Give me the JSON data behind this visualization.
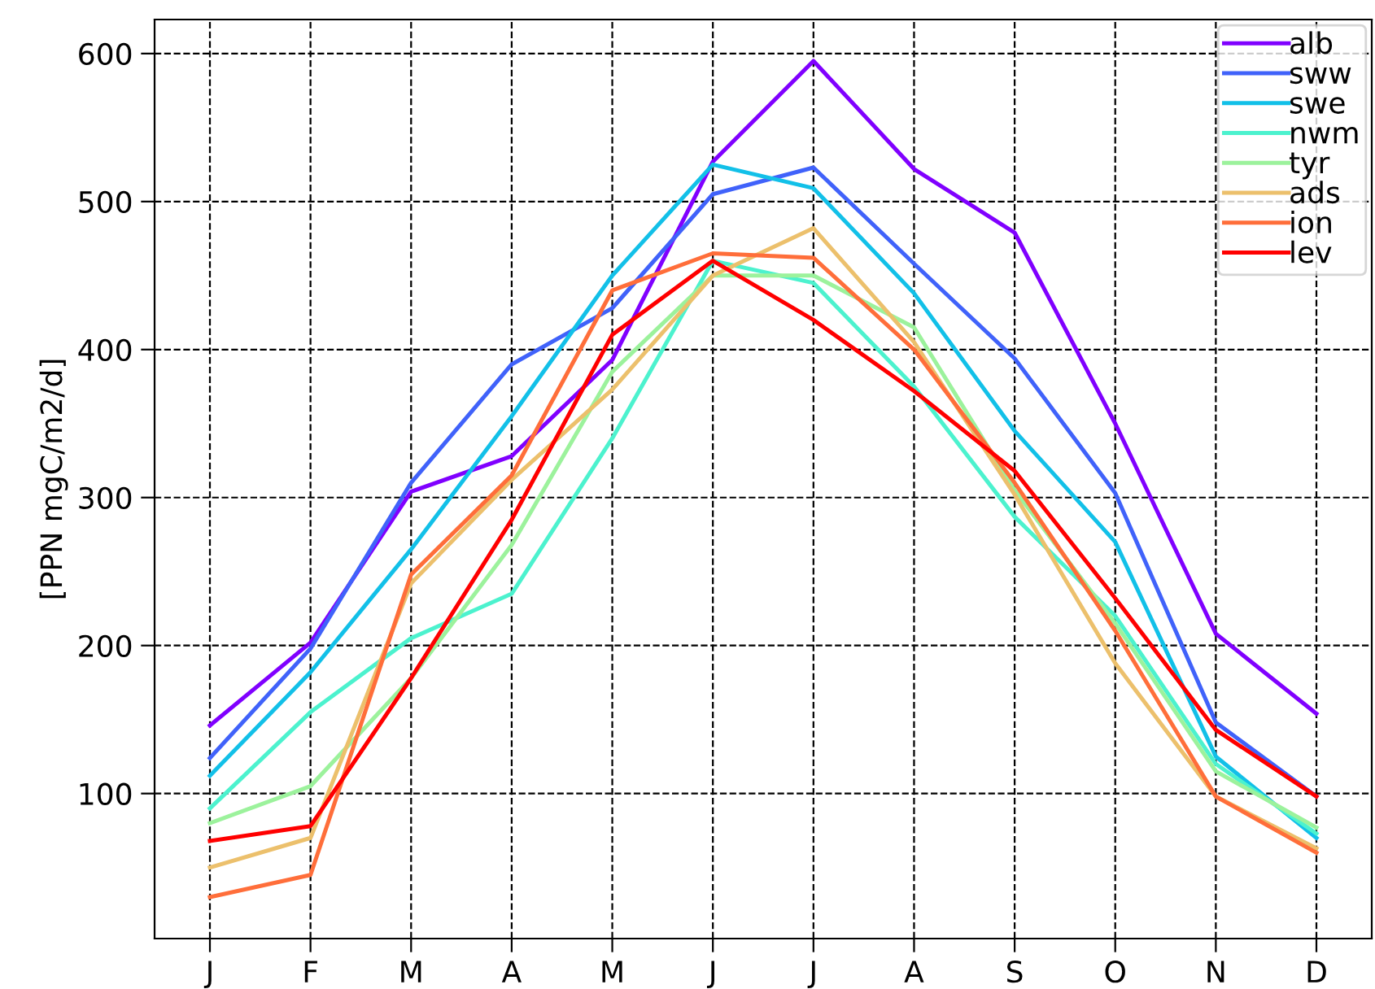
{
  "chart_data": {
    "type": "line",
    "ylabel": "[PPN mgC/m2/d]",
    "categories": [
      "J",
      "F",
      "M",
      "A",
      "M",
      "J",
      "J",
      "A",
      "S",
      "O",
      "N",
      "D"
    ],
    "ylim": [
      2,
      623
    ],
    "yticks": [
      100,
      200,
      300,
      400,
      500,
      600
    ],
    "grid": true,
    "legend": "top right",
    "line_style": "solid",
    "series": [
      {
        "name": "alb",
        "color": "#8000ff",
        "values": [
          146,
          202,
          304,
          328,
          393,
          527,
          595,
          522,
          479,
          350,
          208,
          154
        ]
      },
      {
        "name": "sww",
        "color": "#4062fa",
        "values": [
          124,
          198,
          310,
          390,
          428,
          505,
          523,
          458,
          394,
          303,
          148,
          98
        ]
      },
      {
        "name": "swe",
        "color": "#12c0e8",
        "values": [
          112,
          182,
          265,
          355,
          450,
          525,
          509,
          438,
          345,
          270,
          125,
          70
        ]
      },
      {
        "name": "nwm",
        "color": "#4cf2ce",
        "values": [
          90,
          155,
          205,
          235,
          340,
          460,
          445,
          375,
          287,
          220,
          120,
          73
        ]
      },
      {
        "name": "tyr",
        "color": "#9cf29c",
        "values": [
          80,
          105,
          178,
          268,
          385,
          450,
          450,
          415,
          305,
          215,
          115,
          77
        ]
      },
      {
        "name": "ads",
        "color": "#ecc06c",
        "values": [
          50,
          70,
          242,
          312,
          373,
          450,
          482,
          405,
          302,
          188,
          98,
          63
        ]
      },
      {
        "name": "ion",
        "color": "#ff6e3a",
        "values": [
          30,
          45,
          248,
          315,
          440,
          465,
          462,
          400,
          310,
          210,
          98,
          60
        ]
      },
      {
        "name": "lev",
        "color": "#ff0000",
        "values": [
          68,
          78,
          178,
          285,
          410,
          460,
          420,
          372,
          318,
          232,
          143,
          98
        ]
      }
    ]
  }
}
